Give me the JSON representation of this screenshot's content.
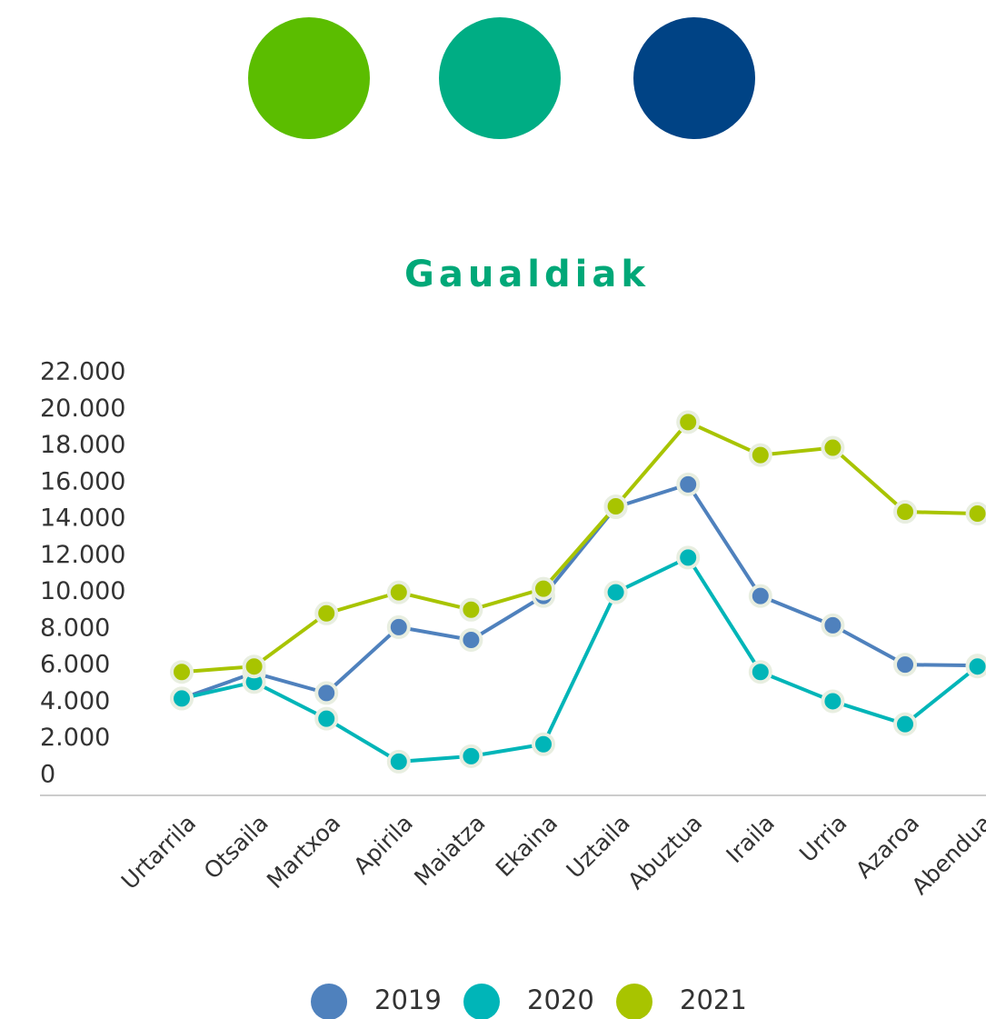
{
  "chart_data": {
    "type": "line",
    "title": "Gaualdiak",
    "categories": [
      "Urtarrila",
      "Otsaila",
      "Martxoa",
      "Apirila",
      "Maiatza",
      "Ekaina",
      "Uztaila",
      "Abuztua",
      "Iraila",
      "Urria",
      "Azaroa",
      "Abendua"
    ],
    "series": [
      {
        "name": "2019",
        "color": "#4f81bd",
        "values": [
          4200,
          5600,
          4500,
          8100,
          7400,
          9800,
          14650,
          15900,
          9800,
          8200,
          6050,
          6000
        ]
      },
      {
        "name": "2020",
        "color": "#00b5b8",
        "values": [
          4200,
          5100,
          3100,
          750,
          1050,
          1700,
          10000,
          11900,
          5650,
          4050,
          2800,
          5950
        ]
      },
      {
        "name": "2021",
        "color": "#a8c400",
        "values": [
          5650,
          5950,
          8850,
          10000,
          9050,
          10200,
          14700,
          19300,
          17500,
          17900,
          14400,
          14300
        ]
      }
    ],
    "ylim": [
      0,
      22000
    ],
    "yticks": [
      0,
      {
        "value": 2000,
        "label": "2.000"
      },
      {
        "value": 4000,
        "label": "4.000"
      },
      {
        "value": 6000,
        "label": "6.000"
      },
      {
        "value": 8000,
        "label": "8.000"
      },
      {
        "value": 10000,
        "label": "10.000"
      },
      {
        "value": 12000,
        "label": "12.000"
      },
      {
        "value": 14000,
        "label": "14.000"
      },
      {
        "value": 16000,
        "label": "16.000"
      },
      {
        "value": 18000,
        "label": "18.000"
      },
      {
        "value": 20000,
        "label": "20.000"
      },
      {
        "value": 22000,
        "label": "22.000"
      }
    ],
    "grid": false
  }
}
